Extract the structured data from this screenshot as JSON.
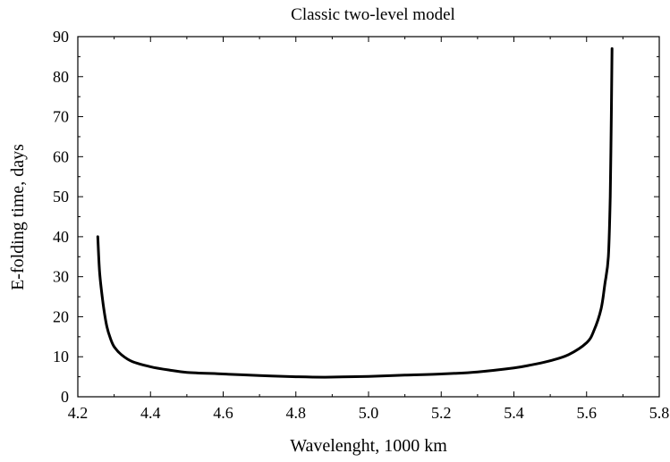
{
  "chart_data": {
    "type": "line",
    "title": "Classic two-level model",
    "xlabel": "Wavelenght, 1000 km",
    "ylabel": "E-folding time, days",
    "xlim": [
      4.2,
      5.8
    ],
    "ylim": [
      0,
      90
    ],
    "x_ticks": [
      "4.2",
      "4.4",
      "4.6",
      "4.8",
      "5.0",
      "5.2",
      "5.4",
      "5.6",
      "5.8"
    ],
    "y_ticks": [
      "0",
      "10",
      "20",
      "30",
      "40",
      "50",
      "60",
      "70",
      "80",
      "90"
    ],
    "x_tick_values": [
      4.2,
      4.4,
      4.6,
      4.8,
      5.0,
      5.2,
      5.4,
      5.6,
      5.8
    ],
    "y_tick_values": [
      0,
      10,
      20,
      30,
      40,
      50,
      60,
      70,
      80,
      90
    ],
    "grid": false,
    "line_color": "#000000",
    "series": [
      {
        "x": [
          4.255,
          4.26,
          4.27,
          4.28,
          4.29,
          4.3,
          4.32,
          4.35,
          4.4,
          4.45,
          4.5,
          4.6,
          4.7,
          4.8,
          4.88,
          5.0,
          5.1,
          5.2,
          5.3,
          5.4,
          5.45,
          5.5,
          5.55,
          5.6,
          5.62,
          5.64,
          5.65,
          5.66,
          5.665,
          5.668,
          5.67
        ],
        "y": [
          40,
          31,
          23,
          17.5,
          14.5,
          12.5,
          10.5,
          8.8,
          7.5,
          6.7,
          6.1,
          5.7,
          5.3,
          5.0,
          4.9,
          5.1,
          5.4,
          5.7,
          6.2,
          7.2,
          8.0,
          9.0,
          10.5,
          13.5,
          16.5,
          22,
          28,
          35,
          50,
          70,
          87
        ]
      }
    ]
  }
}
